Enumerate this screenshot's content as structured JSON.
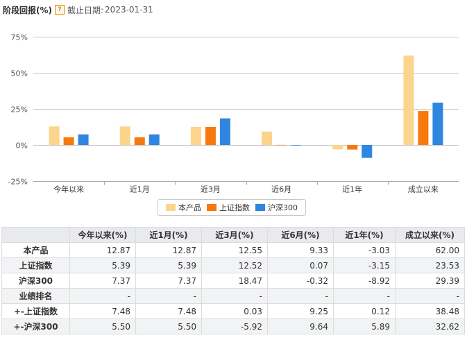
{
  "header": {
    "title": "阶段回报(%)",
    "help_icon": "?",
    "date_label": "截止日期:",
    "date_value": "2023-01-31"
  },
  "colors": {
    "series": [
      "#fdd48c",
      "#f7790e",
      "#2f86e0"
    ],
    "grid": "#cccccc",
    "axis_text": "#555555"
  },
  "chart_data": {
    "type": "bar",
    "categories": [
      "今年以来",
      "近1月",
      "近3月",
      "近6月",
      "近1年",
      "成立以来"
    ],
    "series": [
      {
        "name": "本产品",
        "values": [
          12.87,
          12.87,
          12.55,
          9.33,
          -3.03,
          62.0
        ]
      },
      {
        "name": "上证指数",
        "values": [
          5.39,
          5.39,
          12.52,
          0.07,
          -3.15,
          23.53
        ]
      },
      {
        "name": "沪深300",
        "values": [
          7.37,
          7.37,
          18.47,
          -0.32,
          -8.92,
          29.39
        ]
      }
    ],
    "yticks": [
      75,
      50,
      25,
      0,
      -25
    ],
    "ytick_labels": [
      "75%",
      "50%",
      "25%",
      "0%",
      "-25%"
    ],
    "ylim": [
      -25,
      75
    ],
    "grid": true,
    "legend_position": "bottom"
  },
  "table": {
    "columns": [
      "",
      "今年以来(%)",
      "近1月(%)",
      "近3月(%)",
      "近6月(%)",
      "近1年(%)",
      "成立以来(%)"
    ],
    "rows": [
      {
        "label": "本产品",
        "cells": [
          "12.87",
          "12.87",
          "12.55",
          "9.33",
          "-3.03",
          "62.00"
        ]
      },
      {
        "label": "上证指数",
        "cells": [
          "5.39",
          "5.39",
          "12.52",
          "0.07",
          "-3.15",
          "23.53"
        ]
      },
      {
        "label": "沪深300",
        "cells": [
          "7.37",
          "7.37",
          "18.47",
          "-0.32",
          "-8.92",
          "29.39"
        ]
      },
      {
        "label": "业绩排名",
        "cells": [
          "-",
          "-",
          "-",
          "-",
          "-",
          "-"
        ]
      },
      {
        "label": "+-上证指数",
        "cells": [
          "7.48",
          "7.48",
          "0.03",
          "9.25",
          "0.12",
          "38.48"
        ]
      },
      {
        "label": "+-沪深300",
        "cells": [
          "5.50",
          "5.50",
          "-5.92",
          "9.64",
          "5.89",
          "32.62"
        ]
      }
    ]
  }
}
